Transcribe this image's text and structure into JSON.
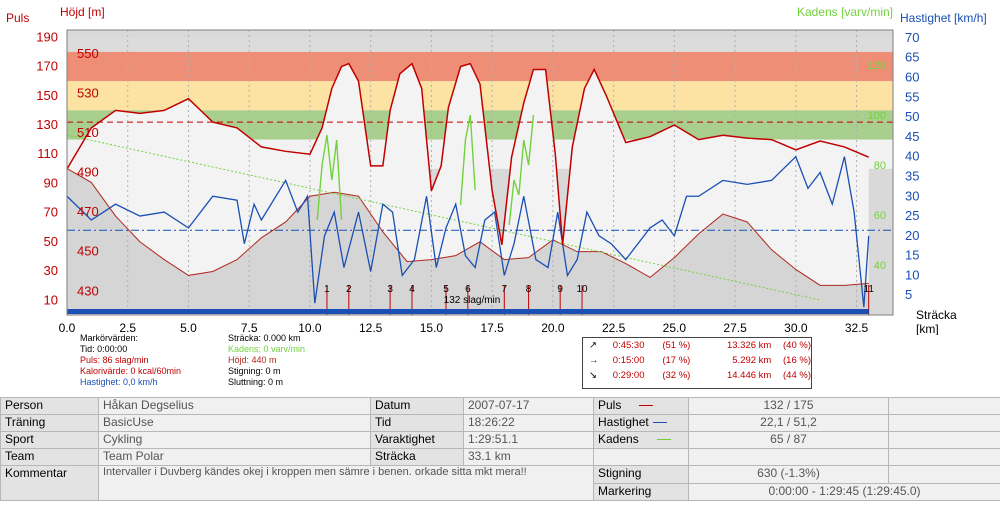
{
  "chart_data": {
    "type": "line",
    "axes": {
      "left_outer_label": "Puls",
      "left_inner_label": "Höjd [m]",
      "right_inner_label": "Kadens [varv/min]",
      "right_outer_label": "Hastighet [km/h]",
      "x_label_line1": "Sträcka",
      "x_label_line2": "[km]",
      "x_ticks": [
        "0.0",
        "2.5",
        "5.0",
        "7.5",
        "10.0",
        "12.5",
        "15.0",
        "17.5",
        "20.0",
        "22.5",
        "25.0",
        "27.5",
        "30.0",
        "32.5"
      ],
      "pulse_ticks": [
        "190",
        "170",
        "150",
        "130",
        "110",
        "90",
        "70",
        "50",
        "30",
        "10"
      ],
      "altitude_ticks": [
        "550",
        "530",
        "510",
        "490",
        "470",
        "450",
        "430"
      ],
      "speed_ticks": [
        "70",
        "65",
        "60",
        "55",
        "50",
        "45",
        "40",
        "35",
        "30",
        "25",
        "20",
        "15",
        "10",
        "5"
      ],
      "cadence_ticks": [
        "120",
        "100",
        "80",
        "60",
        "40"
      ],
      "x_range": [
        0,
        34
      ],
      "pulse_range": [
        0,
        195
      ],
      "speed_range": [
        0,
        72
      ],
      "altitude_range": [
        418,
        562
      ],
      "cadence_range": [
        20,
        134
      ]
    },
    "zones_bpm": [
      {
        "from": 180,
        "to": 190,
        "color": "#dcdcdc"
      },
      {
        "from": 160,
        "to": 180,
        "color": "#ef8e77"
      },
      {
        "from": 140,
        "to": 160,
        "color": "#fce3a3"
      },
      {
        "from": 120,
        "to": 140,
        "color": "#a8cf8e"
      },
      {
        "from": 100,
        "to": 120,
        "color": "#f2f2f2"
      }
    ],
    "reference_lines": {
      "pulse_bpm": 132,
      "speed_kmh": 21.4
    },
    "reference_label": "132 slag/min",
    "lap_markers": [
      {
        "n": "1",
        "km": 10.7
      },
      {
        "n": "2",
        "km": 11.6
      },
      {
        "n": "3",
        "km": 13.3
      },
      {
        "n": "4",
        "km": 14.2
      },
      {
        "n": "5",
        "km": 15.6
      },
      {
        "n": "6",
        "km": 16.5
      },
      {
        "n": "7",
        "km": 18.0
      },
      {
        "n": "8",
        "km": 19.0
      },
      {
        "n": "9",
        "km": 20.3
      },
      {
        "n": "10",
        "km": 21.2
      },
      {
        "n": "11",
        "km": 33.0
      }
    ],
    "series": [
      {
        "name": "Höjd",
        "color": "#b0281e",
        "x": [
          0,
          1,
          2,
          3,
          4,
          5,
          6,
          7,
          8,
          9,
          10,
          11,
          12,
          13,
          14,
          15,
          16,
          17,
          18,
          19,
          20,
          21,
          22,
          23,
          24,
          25,
          26,
          27,
          28,
          29,
          30,
          31,
          32,
          33
        ],
        "values": [
          492,
          485,
          468,
          455,
          446,
          438,
          440,
          446,
          457,
          465,
          478,
          480,
          478,
          460,
          445,
          446,
          448,
          455,
          446,
          447,
          456,
          450,
          450,
          444,
          437,
          447,
          459,
          469,
          465,
          451,
          441,
          433,
          433,
          434
        ]
      },
      {
        "name": "Puls",
        "color": "#c00000",
        "x": [
          0,
          1,
          2,
          3,
          4,
          5,
          5.5,
          6,
          7,
          8,
          9,
          10,
          10.5,
          10.9,
          11.3,
          11.6,
          12,
          12.5,
          13,
          13.3,
          13.7,
          14.2,
          14.6,
          15,
          15.4,
          15.7,
          16.2,
          16.6,
          17,
          17.5,
          17.9,
          18.3,
          18.8,
          19.2,
          19.7,
          20.1,
          20.4,
          20.8,
          21.3,
          21.7,
          22.2,
          23,
          24,
          25,
          26,
          27,
          28,
          29,
          30,
          31,
          32,
          33
        ],
        "values": [
          100,
          128,
          140,
          138,
          140,
          148,
          140,
          132,
          128,
          115,
          112,
          110,
          128,
          155,
          170,
          172,
          160,
          102,
          102,
          140,
          165,
          172,
          155,
          85,
          102,
          142,
          170,
          172,
          158,
          85,
          48,
          108,
          145,
          168,
          168,
          110,
          48,
          115,
          155,
          168,
          150,
          118,
          122,
          130,
          120,
          123,
          121,
          120,
          113,
          119,
          115,
          108
        ]
      },
      {
        "name": "Hastighet",
        "color": "#1a4fb4",
        "x": [
          0,
          1,
          2,
          3,
          4,
          5,
          6,
          7,
          7.3,
          7.7,
          8,
          9,
          9.5,
          9.9,
          10.2,
          10.6,
          11,
          11.4,
          12,
          12.5,
          13,
          13.4,
          13.8,
          14.3,
          14.8,
          15.2,
          15.6,
          16,
          16.4,
          16.8,
          17.2,
          17.6,
          18,
          18.4,
          18.8,
          19.3,
          19.8,
          20.2,
          20.6,
          21,
          21.4,
          21.9,
          22.4,
          23,
          23.5,
          24,
          24.5,
          25,
          25.5,
          26,
          27,
          28,
          29,
          30,
          30.5,
          31,
          31.5,
          32,
          32.4,
          32.8,
          33
        ],
        "values": [
          30,
          24,
          28,
          25,
          26,
          22,
          30,
          29,
          18,
          28,
          24,
          34,
          26,
          30,
          3,
          20,
          26,
          12,
          26,
          11,
          28,
          26,
          10,
          14,
          30,
          12,
          22,
          28,
          15,
          12,
          24,
          26,
          10,
          18,
          30,
          14,
          12,
          26,
          10,
          14,
          26,
          20,
          18,
          14,
          18,
          22,
          24,
          20,
          30,
          30,
          34,
          33,
          34,
          40,
          32,
          36,
          28,
          40,
          26,
          2,
          20
        ]
      },
      {
        "name": "Kadens",
        "color": "#72d23c",
        "x": [
          10.3,
          10.5,
          10.7,
          10.9,
          11.1,
          11.3,
          16.2,
          16.4,
          16.6,
          16.8,
          18.2,
          18.4,
          18.6,
          18.8,
          19.0,
          19.2
        ],
        "values": [
          58,
          80,
          92,
          74,
          90,
          58,
          64,
          90,
          100,
          70,
          56,
          74,
          68,
          90,
          80,
          100
        ]
      },
      {
        "name": "Kadens trend",
        "color": "#72d23c",
        "x": [
          0,
          31
        ],
        "values": [
          92,
          26
        ]
      }
    ]
  },
  "markers": {
    "title": "Markörvärden:",
    "time": "Tid: 0:00:00",
    "pulse": "Puls: 86 slag/min",
    "calories": "Kalorivärde: 0 kcal/60min",
    "speed": "Hastighet: 0,0 km/h",
    "distance": "Sträcka: 0.000 km",
    "cadence": "Kadens: 0 varv/min",
    "altitude": "Höjd: 440 m",
    "ascent": "Stigning: 0 m",
    "descent": "Sluttning: 0 m"
  },
  "summary_rows": [
    {
      "icon": "↗",
      "time": "0:45:30",
      "pct": "(51 %)",
      "km": "13.326 km",
      "kmpct": "(40 %)"
    },
    {
      "icon": "→",
      "time": "0:15:00",
      "pct": "(17 %)",
      "km": "5.292 km",
      "kmpct": "(16 %)"
    },
    {
      "icon": "↘",
      "time": "0:29:00",
      "pct": "(32 %)",
      "km": "14.446 km",
      "kmpct": "(44 %)"
    }
  ],
  "info": {
    "person_label": "Person",
    "person": "Håkan Degselius",
    "training_label": "Träning",
    "training": "BasicUse",
    "sport_label": "Sport",
    "sport": "Cykling",
    "team_label": "Team",
    "team": "Team Polar",
    "comment_label": "Kommentar",
    "comment": "Intervaller i Duvberg kändes okej i kroppen men sämre i benen. orkade sitta mkt mera!!",
    "date_label": "Datum",
    "date": "2007-07-17",
    "time_label": "Tid",
    "time": "18:26:22",
    "duration_label": "Varaktighet",
    "duration": "1:29:51.1",
    "distance_label": "Sträcka",
    "distance": "33.1 km",
    "pulse_label": "Puls",
    "pulse": "132 / 175",
    "speed_label": "Hastighet",
    "speed": "22,1 / 51,2",
    "cadence_label": "Kadens",
    "cadence": "65 / 87",
    "ascent_label": "Stigning",
    "ascent": "630 (-1.3%)",
    "marking_label": "Markering",
    "marking": "0:00:00 - 1:29:45 (1:29:45.0)"
  }
}
